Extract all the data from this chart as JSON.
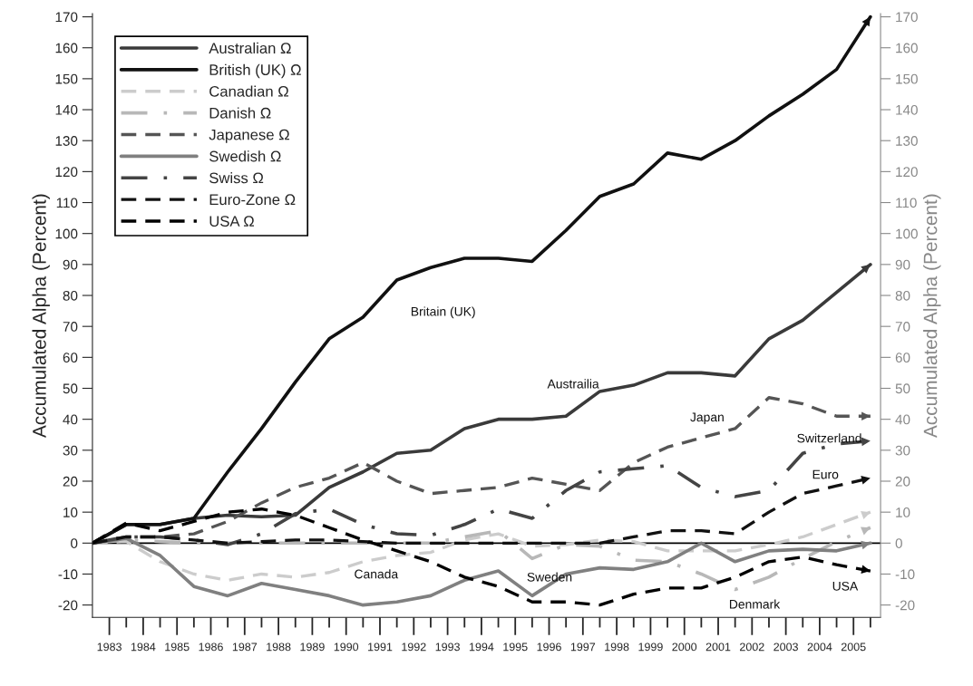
{
  "chart_data": {
    "type": "line",
    "ylabel": "Accumulated Alpha (Percent)",
    "y2label": "Accumulated Alpha (Percent)",
    "x": [
      1982.5,
      1983.5,
      1984.5,
      1985.5,
      1986.5,
      1987.5,
      1988.5,
      1989.5,
      1990.5,
      1991.5,
      1992.5,
      1993.5,
      1994.5,
      1995.5,
      1996.5,
      1997.5,
      1998.5,
      1999.5,
      2000.5,
      2001.5,
      2002.5,
      2003.5,
      2004.5,
      2005.5
    ],
    "series": [
      {
        "name": "Australian Ω",
        "color": "#3a3a3a",
        "line_style": "solid",
        "values": [
          0,
          6,
          6,
          8,
          9,
          8.5,
          9,
          18,
          23,
          29,
          30,
          37,
          40,
          40,
          41,
          49,
          51,
          55,
          55,
          54,
          66,
          72,
          81,
          90
        ]
      },
      {
        "name": "British (UK) Ω",
        "color": "#111111",
        "line_style": "solid",
        "values": [
          0,
          6,
          6,
          8,
          23,
          37,
          52,
          66,
          73,
          85,
          89,
          92,
          92,
          91,
          101,
          112,
          116,
          126,
          124,
          130,
          138,
          145,
          153,
          170
        ]
      },
      {
        "name": "Canadian Ω",
        "color": "#cccccc",
        "line_style": "dashed",
        "values": [
          0,
          0.5,
          -6,
          -10,
          -12,
          -10,
          -11,
          -9.5,
          -6,
          -4,
          -3,
          1,
          3,
          -1,
          -0.5,
          1,
          0.5,
          -2.5,
          -2.5,
          -2.5,
          -0.5,
          2,
          6,
          10
        ]
      },
      {
        "name": "Danish Ω",
        "color": "#b8b8b8",
        "line_style": "dashdot",
        "values": [
          0,
          1,
          0.5,
          0,
          0,
          0,
          0,
          0,
          0,
          0,
          0,
          2,
          4,
          -5,
          -0.5,
          -1,
          -5.5,
          -6,
          -10,
          -15,
          -11,
          -5,
          0.5,
          5
        ]
      },
      {
        "name": "Japanese Ω",
        "color": "#555555",
        "line_style": "dashed",
        "values": [
          0,
          2,
          2,
          3,
          7,
          13,
          18,
          21,
          26,
          20,
          16,
          17,
          18,
          21,
          19,
          17,
          26,
          31,
          34,
          37,
          47,
          45,
          41,
          41
        ]
      },
      {
        "name": "Swedish Ω",
        "color": "#808080",
        "line_style": "solid",
        "values": [
          0,
          1.5,
          -4,
          -14,
          -17,
          -13,
          -15,
          -17,
          -20,
          -19,
          -17,
          -12,
          -9,
          -17,
          -10,
          -8,
          -8.5,
          -6,
          0,
          -6,
          -2.5,
          -2,
          -2.5,
          0
        ]
      },
      {
        "name": "Swiss Ω",
        "color": "#444444",
        "line_style": "dashdot",
        "values": [
          0,
          2,
          2,
          1,
          -0.5,
          3,
          9.5,
          11,
          6,
          3,
          2.5,
          6,
          11,
          8,
          17,
          23,
          24,
          25,
          18,
          15,
          17,
          29,
          32,
          33
        ]
      },
      {
        "name": "Euro-Zone Ω",
        "color": "#111111",
        "line_style": "dashed",
        "values": [
          0,
          2,
          2,
          1,
          0,
          0.5,
          1,
          1,
          0.5,
          0,
          0,
          0,
          0,
          0,
          0,
          0,
          2,
          4,
          4,
          3,
          10,
          16,
          18.5,
          21
        ]
      },
      {
        "name": "USA Ω",
        "color": "#000000",
        "line_style": "dashed",
        "values": [
          0,
          6.5,
          4,
          7,
          10,
          11,
          9,
          5,
          1,
          -2.5,
          -6,
          -11,
          -14,
          -19,
          -19,
          -20,
          -16.5,
          -14.5,
          -14.5,
          -11,
          -6,
          -4.5,
          -7,
          -9
        ]
      }
    ],
    "annotations": [
      "Britain (UK)",
      "Austrailia",
      "Japan",
      "Switzerland",
      "Euro",
      "Canada",
      "Sweden",
      "Denmark",
      "USA"
    ],
    "ref_lines": [
      {
        "axis": "y",
        "value": 0,
        "color": "#000000"
      }
    ],
    "xlim": [
      1982.5,
      2005.8
    ],
    "xticks": [
      1983,
      1984,
      1985,
      1986,
      1987,
      1988,
      1989,
      1990,
      1991,
      1992,
      1993,
      1994,
      1995,
      1996,
      1997,
      1998,
      1999,
      2000,
      2001,
      2002,
      2003,
      2004,
      2005,
      {
        "value": 1983.5,
        "label": null
      },
      {
        "value": 1984.5,
        "label": null
      },
      {
        "value": 1985.5,
        "label": null
      },
      {
        "value": 1986.5,
        "label": null
      },
      {
        "value": 1987.5,
        "label": null
      },
      {
        "value": 1988.5,
        "label": null
      },
      {
        "value": 1989.5,
        "label": null
      },
      {
        "value": 1990.5,
        "label": null
      },
      {
        "value": 1991.5,
        "label": null
      },
      {
        "value": 1992.5,
        "label": null
      },
      {
        "value": 1993.5,
        "label": null
      },
      {
        "value": 1994.5,
        "label": null
      },
      {
        "value": 1995.5,
        "label": null
      },
      {
        "value": 1996.5,
        "label": null
      },
      {
        "value": 1997.5,
        "label": null
      },
      {
        "value": 1998.5,
        "label": null
      },
      {
        "value": 1999.5,
        "label": null
      },
      {
        "value": 2000.5,
        "label": null
      },
      {
        "value": 2001.5,
        "label": null
      },
      {
        "value": 2002.5,
        "label": null
      },
      {
        "value": 2003.5,
        "label": null
      },
      {
        "value": 2004.5,
        "label": null
      },
      {
        "value": 2005.5,
        "label": null
      }
    ],
    "ylim": [
      -24,
      171
    ],
    "yticks": [
      -20,
      -10,
      0,
      10,
      20,
      30,
      40,
      50,
      60,
      70,
      80,
      90,
      100,
      110,
      120,
      130,
      140,
      150,
      160,
      170
    ],
    "y2lim": [
      -24,
      171
    ],
    "y2ticks": [
      -20,
      -10,
      0,
      10,
      20,
      30,
      40,
      50,
      60,
      70,
      80,
      90,
      100,
      110,
      120,
      130,
      140,
      150,
      160,
      170
    ],
    "grid": false,
    "legend": "top left"
  }
}
